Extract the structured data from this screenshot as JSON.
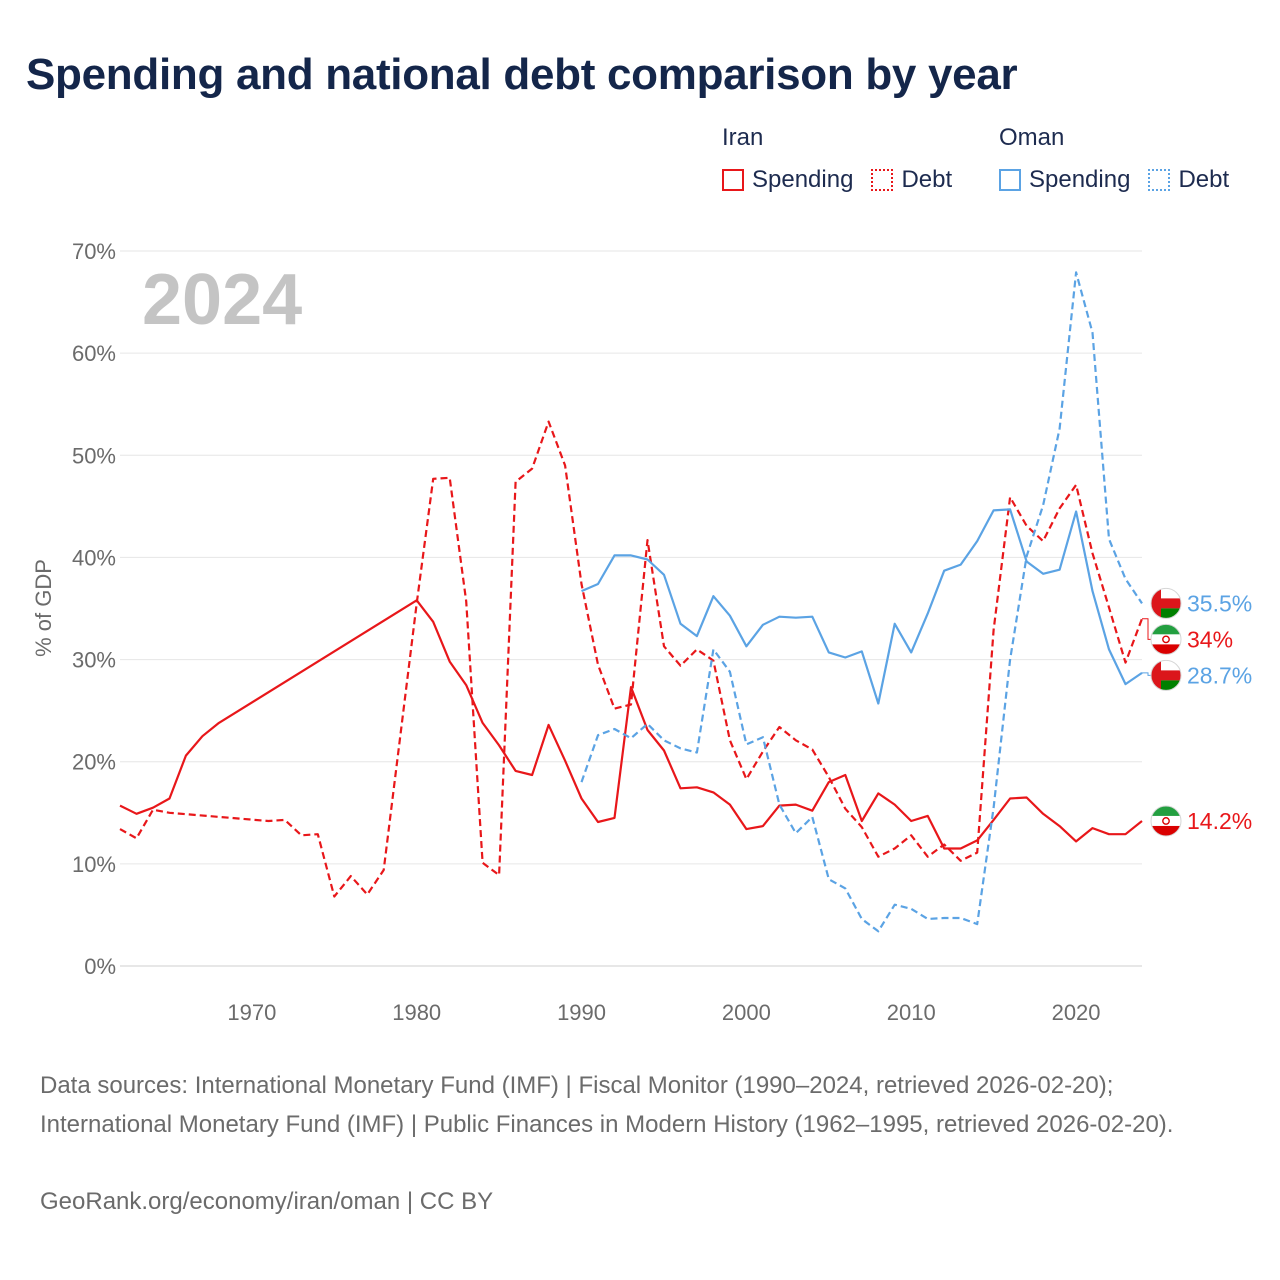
{
  "title": "Spending and national debt comparison by year",
  "year_label": "2024",
  "legend": {
    "groups": [
      {
        "name": "Iran",
        "color": "#e8171a",
        "items": [
          {
            "label": "Spending",
            "style": "solid"
          },
          {
            "label": "Debt",
            "style": "dotted"
          }
        ]
      },
      {
        "name": "Oman",
        "color": "#5ba3e4",
        "items": [
          {
            "label": "Spending",
            "style": "solid"
          },
          {
            "label": "Debt",
            "style": "dotted"
          }
        ]
      }
    ]
  },
  "footer": {
    "sources": "Data sources: International Monetary Fund (IMF) | Fiscal Monitor (1990–2024, retrieved 2026-02-20); International Monetary Fund (IMF) | Public Finances in Modern History (1962–1995, retrieved 2026-02-20).",
    "credit": "GeoRank.org/economy/iran/oman | CC BY"
  },
  "chart_data": {
    "type": "line",
    "title": "Spending and national debt comparison by year",
    "xlabel": "",
    "ylabel": "% of GDP",
    "xlim": [
      1962,
      2024
    ],
    "ylim": [
      0,
      70
    ],
    "x_ticks": [
      1970,
      1980,
      1990,
      2000,
      2010,
      2020
    ],
    "y_ticks": [
      0,
      10,
      20,
      30,
      40,
      50,
      60,
      70
    ],
    "y_tick_suffix": "%",
    "grid": true,
    "series": [
      {
        "name": "Iran Spending",
        "country": "Iran",
        "metric": "Spending",
        "color": "#e8171a",
        "dash": false,
        "end_label": "14.2%",
        "flag": "iran",
        "points": [
          [
            1962,
            15.7
          ],
          [
            1963,
            14.9
          ],
          [
            1964,
            15.5
          ],
          [
            1965,
            16.4
          ],
          [
            1966,
            20.6
          ],
          [
            1967,
            22.5
          ],
          [
            1968,
            23.8
          ],
          [
            1980,
            35.8
          ],
          [
            1981,
            33.7
          ],
          [
            1982,
            29.8
          ],
          [
            1983,
            27.5
          ],
          [
            1984,
            23.8
          ],
          [
            1985,
            21.6
          ],
          [
            1986,
            19.1
          ],
          [
            1987,
            18.7
          ],
          [
            1988,
            23.6
          ],
          [
            1989,
            20.1
          ],
          [
            1990,
            16.4
          ],
          [
            1991,
            14.1
          ],
          [
            1992,
            14.5
          ],
          [
            1993,
            27.3
          ],
          [
            1994,
            23.1
          ],
          [
            1995,
            21.1
          ],
          [
            1996,
            17.4
          ],
          [
            1997,
            17.5
          ],
          [
            1998,
            17.0
          ],
          [
            1999,
            15.8
          ],
          [
            2000,
            13.4
          ],
          [
            2001,
            13.7
          ],
          [
            2002,
            15.7
          ],
          [
            2003,
            15.8
          ],
          [
            2004,
            15.2
          ],
          [
            2005,
            18.0
          ],
          [
            2006,
            18.7
          ],
          [
            2007,
            14.2
          ],
          [
            2008,
            16.9
          ],
          [
            2009,
            15.8
          ],
          [
            2010,
            14.2
          ],
          [
            2011,
            14.7
          ],
          [
            2012,
            11.5
          ],
          [
            2013,
            11.5
          ],
          [
            2014,
            12.3
          ],
          [
            2015,
            14.3
          ],
          [
            2016,
            16.4
          ],
          [
            2017,
            16.5
          ],
          [
            2018,
            14.9
          ],
          [
            2019,
            13.7
          ],
          [
            2020,
            12.2
          ],
          [
            2021,
            13.5
          ],
          [
            2022,
            12.9
          ],
          [
            2023,
            12.9
          ],
          [
            2024,
            14.2
          ]
        ]
      },
      {
        "name": "Iran Debt",
        "country": "Iran",
        "metric": "Debt",
        "color": "#e8171a",
        "dash": true,
        "end_label": "34%",
        "flag": "iran",
        "points": [
          [
            1962,
            13.4
          ],
          [
            1963,
            12.5
          ],
          [
            1964,
            15.3
          ],
          [
            1965,
            15.0
          ],
          [
            1971,
            14.2
          ],
          [
            1972,
            14.3
          ],
          [
            1973,
            12.8
          ],
          [
            1974,
            12.9
          ],
          [
            1975,
            6.8
          ],
          [
            1976,
            8.8
          ],
          [
            1977,
            7.0
          ],
          [
            1978,
            9.4
          ],
          [
            1980,
            35.5
          ],
          [
            1981,
            47.7
          ],
          [
            1982,
            47.8
          ],
          [
            1983,
            35.7
          ],
          [
            1984,
            10.1
          ],
          [
            1985,
            8.9
          ],
          [
            1986,
            47.4
          ],
          [
            1987,
            48.7
          ],
          [
            1988,
            53.3
          ],
          [
            1989,
            49.0
          ],
          [
            1990,
            37.4
          ],
          [
            1991,
            29.5
          ],
          [
            1992,
            25.2
          ],
          [
            1993,
            25.6
          ],
          [
            1994,
            41.7
          ],
          [
            1995,
            31.3
          ],
          [
            1996,
            29.4
          ],
          [
            1997,
            31.0
          ],
          [
            1998,
            29.9
          ],
          [
            1999,
            22.1
          ],
          [
            2000,
            18.3
          ],
          [
            2001,
            21.0
          ],
          [
            2002,
            23.4
          ],
          [
            2003,
            22.1
          ],
          [
            2004,
            21.2
          ],
          [
            2005,
            18.5
          ],
          [
            2006,
            15.4
          ],
          [
            2007,
            13.6
          ],
          [
            2008,
            10.7
          ],
          [
            2009,
            11.5
          ],
          [
            2010,
            12.8
          ],
          [
            2011,
            10.7
          ],
          [
            2012,
            11.9
          ],
          [
            2013,
            10.3
          ],
          [
            2014,
            11.1
          ],
          [
            2015,
            32.9
          ],
          [
            2016,
            45.9
          ],
          [
            2017,
            43.1
          ],
          [
            2018,
            41.6
          ],
          [
            2019,
            44.8
          ],
          [
            2020,
            47.1
          ],
          [
            2021,
            40.4
          ],
          [
            2022,
            35.1
          ],
          [
            2023,
            29.7
          ],
          [
            2024,
            34.0
          ]
        ]
      },
      {
        "name": "Oman Spending",
        "country": "Oman",
        "metric": "Spending",
        "color": "#5ba3e4",
        "dash": false,
        "end_label": "28.7%",
        "flag": "oman",
        "points": [
          [
            1990,
            36.7
          ],
          [
            1991,
            37.4
          ],
          [
            1992,
            40.2
          ],
          [
            1993,
            40.2
          ],
          [
            1994,
            39.8
          ],
          [
            1995,
            38.3
          ],
          [
            1996,
            33.5
          ],
          [
            1997,
            32.3
          ],
          [
            1998,
            36.2
          ],
          [
            1999,
            34.3
          ],
          [
            2000,
            31.3
          ],
          [
            2001,
            33.4
          ],
          [
            2002,
            34.2
          ],
          [
            2003,
            34.1
          ],
          [
            2004,
            34.2
          ],
          [
            2005,
            30.7
          ],
          [
            2006,
            30.2
          ],
          [
            2007,
            30.8
          ],
          [
            2008,
            25.7
          ],
          [
            2009,
            33.5
          ],
          [
            2010,
            30.7
          ],
          [
            2011,
            34.5
          ],
          [
            2012,
            38.7
          ],
          [
            2013,
            39.3
          ],
          [
            2014,
            41.6
          ],
          [
            2015,
            44.6
          ],
          [
            2016,
            44.7
          ],
          [
            2017,
            39.6
          ],
          [
            2018,
            38.4
          ],
          [
            2019,
            38.8
          ],
          [
            2020,
            44.5
          ],
          [
            2021,
            36.7
          ],
          [
            2022,
            31.0
          ],
          [
            2023,
            27.6
          ],
          [
            2024,
            28.7
          ]
        ]
      },
      {
        "name": "Oman Debt",
        "country": "Oman",
        "metric": "Debt",
        "color": "#5ba3e4",
        "dash": true,
        "end_label": "35.5%",
        "flag": "oman",
        "points": [
          [
            1990,
            18.0
          ],
          [
            1991,
            22.6
          ],
          [
            1992,
            23.2
          ],
          [
            1993,
            22.3
          ],
          [
            1994,
            23.7
          ],
          [
            1995,
            22.1
          ],
          [
            1996,
            21.3
          ],
          [
            1997,
            20.9
          ],
          [
            1998,
            31.0
          ],
          [
            1999,
            28.8
          ],
          [
            2000,
            21.7
          ],
          [
            2001,
            22.4
          ],
          [
            2002,
            15.8
          ],
          [
            2003,
            13.0
          ],
          [
            2004,
            14.6
          ],
          [
            2005,
            8.5
          ],
          [
            2006,
            7.6
          ],
          [
            2007,
            4.6
          ],
          [
            2008,
            3.4
          ],
          [
            2009,
            6.0
          ],
          [
            2010,
            5.6
          ],
          [
            2011,
            4.6
          ],
          [
            2012,
            4.7
          ],
          [
            2013,
            4.7
          ],
          [
            2014,
            4.1
          ],
          [
            2015,
            15.5
          ],
          [
            2016,
            30.0
          ],
          [
            2017,
            40.1
          ],
          [
            2018,
            45.1
          ],
          [
            2019,
            52.6
          ],
          [
            2020,
            67.9
          ],
          [
            2021,
            62.0
          ],
          [
            2022,
            41.8
          ],
          [
            2023,
            37.9
          ],
          [
            2024,
            35.5
          ]
        ]
      }
    ]
  }
}
